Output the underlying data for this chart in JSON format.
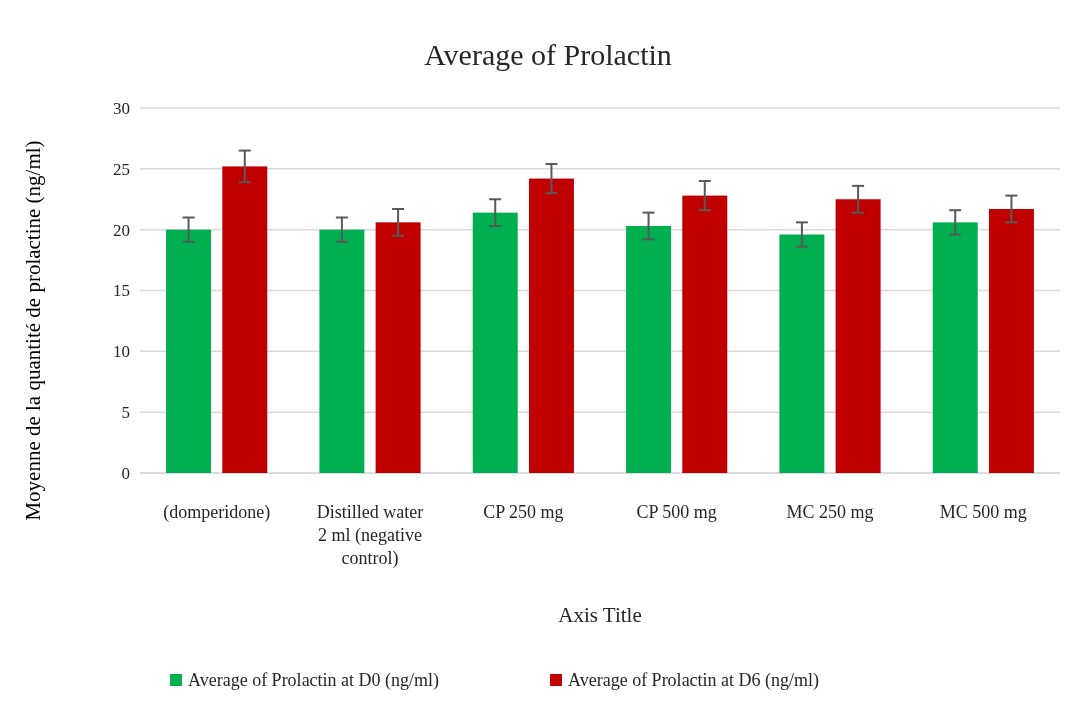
{
  "chart_data": {
    "type": "bar",
    "title": "Average of Prolactin",
    "xlabel": "Axis Title",
    "ylabel": "Moyenne de la quantité de prolactine (ng/ml)",
    "categories": [
      "(domperidone)",
      "Distilled water 2 ml (negative control)",
      "CP 250 mg",
      "CP 500 mg",
      "MC 250 mg",
      "MC 500 mg"
    ],
    "series": [
      {
        "name": "Average of Prolactin at D0 (ng/ml)",
        "color": "#00b050",
        "values": [
          20,
          20,
          21.4,
          20.3,
          19.6,
          20.6
        ],
        "errors": [
          1.0,
          1.0,
          1.1,
          1.1,
          1.0,
          1.0
        ]
      },
      {
        "name": "Average of Prolactin at D6 (ng/ml)",
        "color": "#c00000",
        "values": [
          25.2,
          20.6,
          24.2,
          22.8,
          22.5,
          21.7
        ],
        "errors": [
          1.3,
          1.1,
          1.2,
          1.2,
          1.1,
          1.1
        ]
      }
    ],
    "ylim": [
      0,
      30
    ],
    "yticks": [
      0,
      5,
      10,
      15,
      20,
      25,
      30
    ],
    "grid": "y",
    "legend": "bottom"
  }
}
